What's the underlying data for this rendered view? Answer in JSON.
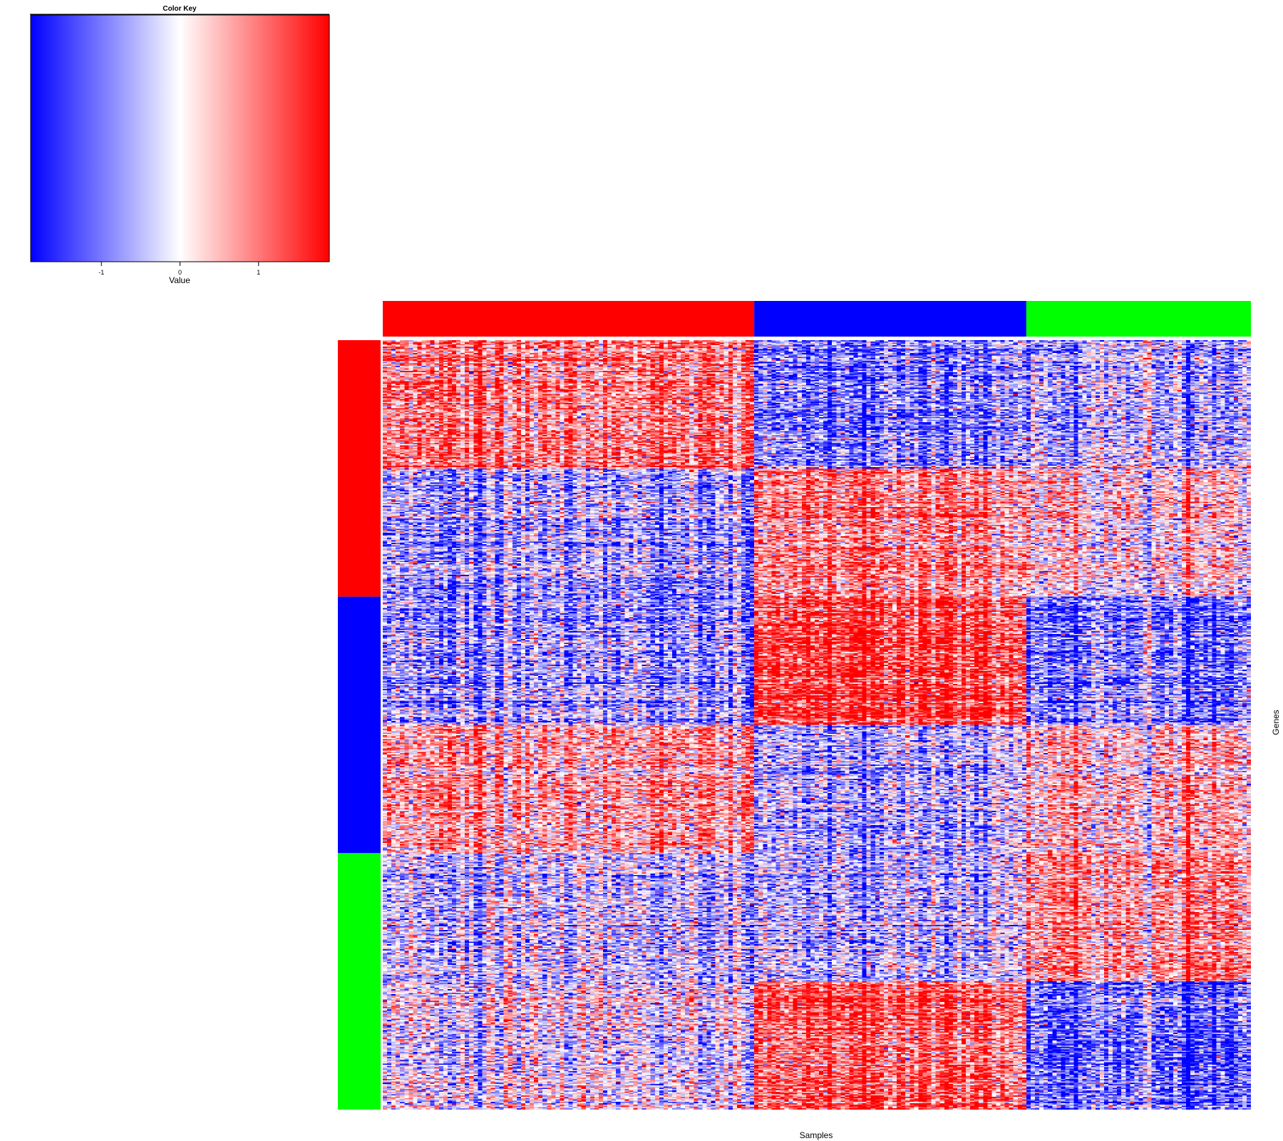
{
  "chart_data": {
    "type": "heatmap",
    "title": "",
    "xlabel": "Samples",
    "ylabel": "Genes",
    "color_key": {
      "title": "Color Key",
      "xlabel": "Value",
      "range": [
        -1.9,
        1.9
      ],
      "ticks": [
        -1,
        0,
        1
      ],
      "tick_labels": [
        "-1",
        "0",
        "1"
      ],
      "colors": [
        "#0000ff",
        "#ffffff",
        "#ff0000"
      ]
    },
    "column_groups": [
      {
        "color": "#ff0000",
        "n_samples": 86
      },
      {
        "color": "#0000ff",
        "n_samples": 63
      },
      {
        "color": "#00ff00",
        "n_samples": 52
      }
    ],
    "row_groups": [
      {
        "color": "#ff0000",
        "n_genes": 200
      },
      {
        "color": "#0000ff",
        "n_genes": 200
      },
      {
        "color": "#00ff00",
        "n_genes": 200
      }
    ],
    "block_mean_z": [
      [
        1.0,
        -1.0,
        -0.6
      ],
      [
        -0.7,
        0.9,
        0.3
      ],
      [
        -0.8,
        1.5,
        -1.1
      ],
      [
        0.6,
        -0.7,
        0.4
      ],
      [
        -0.4,
        -0.5,
        0.9
      ],
      [
        -0.1,
        1.3,
        -1.2
      ]
    ],
    "row_sub_blocks": [
      {
        "row_group": 0,
        "n_genes": 100
      },
      {
        "row_group": 0,
        "n_genes": 100
      },
      {
        "row_group": 1,
        "n_genes": 100
      },
      {
        "row_group": 1,
        "n_genes": 100
      },
      {
        "row_group": 2,
        "n_genes": 100
      },
      {
        "row_group": 2,
        "n_genes": 100
      }
    ]
  }
}
